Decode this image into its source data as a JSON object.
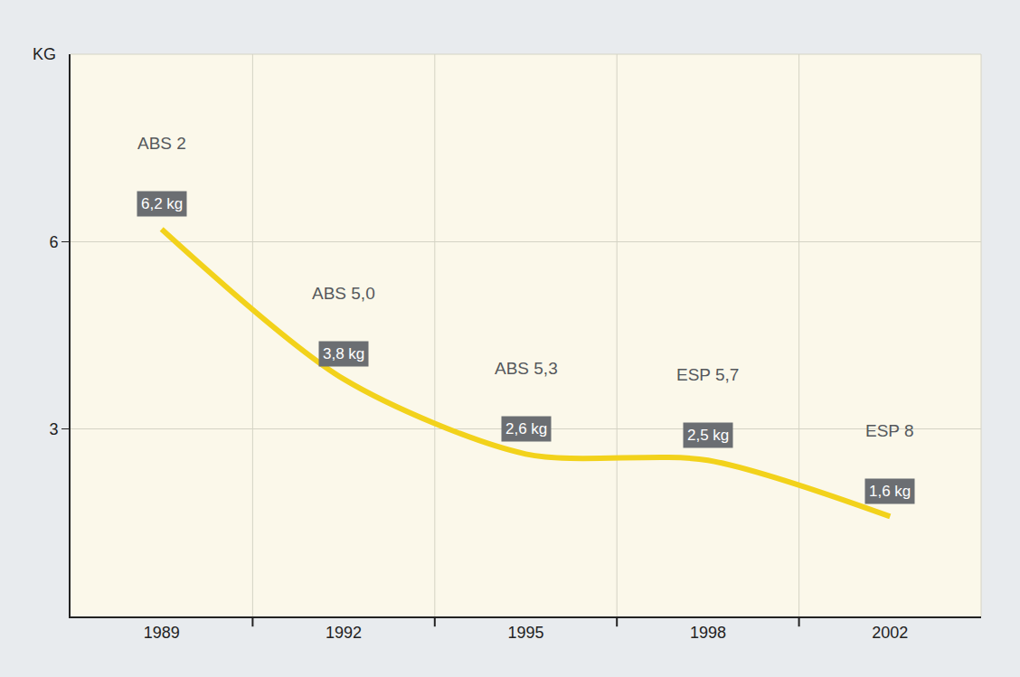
{
  "chart_data": {
    "type": "line",
    "ylabel": "KG",
    "categories": [
      "1989",
      "1992",
      "1995",
      "1998",
      "2002"
    ],
    "values": [
      6.2,
      3.8,
      2.6,
      2.5,
      1.6
    ],
    "value_labels": [
      "6,2 kg",
      "3,8 kg",
      "2,6 kg",
      "2,5 kg",
      "1,6 kg"
    ],
    "annotations": [
      "ABS 2",
      "ABS 5,0",
      "ABS 5,3",
      "ESP 5,7",
      "ESP 8"
    ],
    "color": "#f2d21b",
    "line_style": "solid",
    "ylim": [
      0,
      9
    ],
    "yticks": [
      3,
      6
    ],
    "grid": true,
    "data_labels": true
  }
}
